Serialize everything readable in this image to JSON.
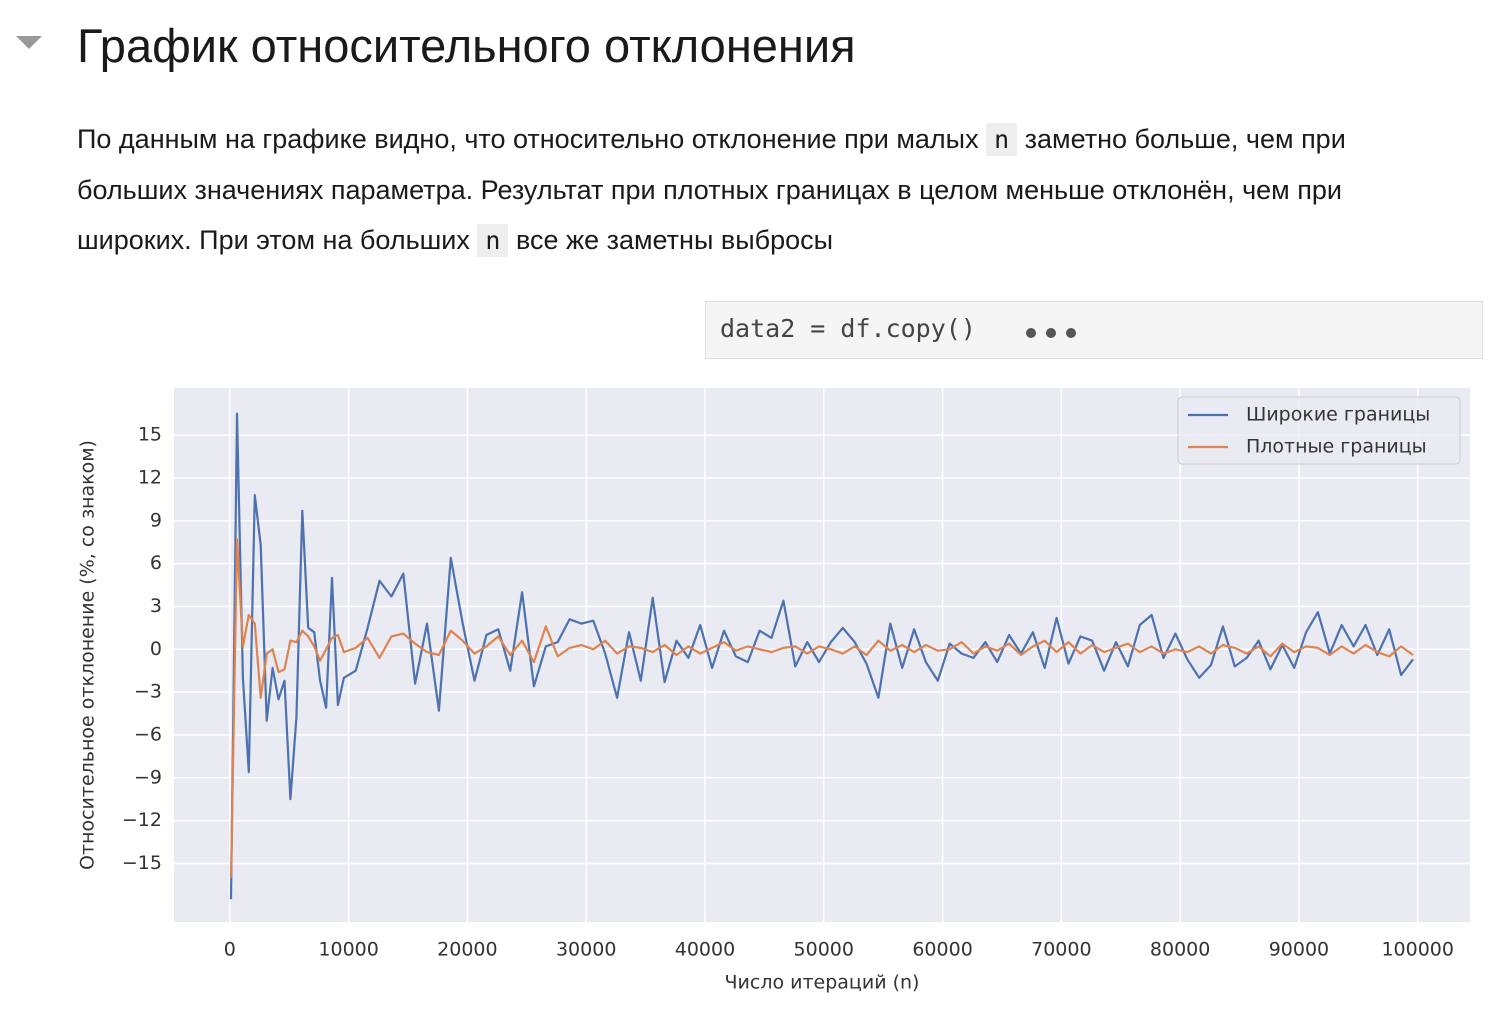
{
  "header": {
    "title": "График относительного отклонения"
  },
  "paragraph": [
    "По данным на графике видно, что относительно отклонение при малых ",
    "n",
    " заметно больше, чем при больших значениях параметра. Результат при плотных границах в целом меньше отклонён, чем при широких. При этом на больших ",
    "n",
    " все же заметны выбросы"
  ],
  "code": "data2 = df.copy()",
  "chart_data": {
    "type": "line",
    "xlabel": "Число итераций (n)",
    "ylabel": "Относительное отклонение (%, со знаком)",
    "x": [
      100,
      600,
      1100,
      1600,
      2100,
      2600,
      3100,
      3600,
      4100,
      4600,
      5100,
      5600,
      6100,
      6600,
      7100,
      7600,
      8100,
      8600,
      9100,
      9600,
      10600,
      11600,
      12600,
      13600,
      14600,
      15600,
      16600,
      17600,
      18600,
      19600,
      20600,
      21600,
      22600,
      23600,
      24600,
      25600,
      26600,
      27600,
      28600,
      29600,
      30600,
      31600,
      32600,
      33600,
      34600,
      35600,
      36600,
      37600,
      38600,
      39600,
      40600,
      41600,
      42600,
      43600,
      44600,
      45600,
      46600,
      47600,
      48600,
      49600,
      50600,
      51600,
      52600,
      53600,
      54600,
      55600,
      56600,
      57600,
      58600,
      59600,
      60600,
      61600,
      62600,
      63600,
      64600,
      65600,
      66600,
      67600,
      68600,
      69600,
      70600,
      71600,
      72600,
      73600,
      74600,
      75600,
      76600,
      77600,
      78600,
      79600,
      80600,
      81600,
      82600,
      83600,
      84600,
      85600,
      86600,
      87600,
      88600,
      89600,
      90600,
      91600,
      92600,
      93600,
      94600,
      95600,
      96600,
      97600,
      98600,
      99600
    ],
    "series": [
      {
        "name": "Широкие границы",
        "color": "#4c72b0",
        "values": [
          -17.5,
          16.5,
          -2,
          -8.6,
          10.8,
          7.3,
          -5,
          -1.3,
          -3.5,
          -2.2,
          -10.5,
          -4.8,
          9.7,
          1.5,
          1.2,
          -2.2,
          -4.1,
          5,
          -3.9,
          -2,
          -1.5,
          1.5,
          4.8,
          3.7,
          5.3,
          -2.4,
          1.8,
          -4.3,
          6.4,
          1.8,
          -2.2,
          1,
          1.4,
          -1.5,
          4,
          -2.6,
          0.2,
          0.5,
          2.1,
          1.8,
          2,
          -0.3,
          -3.4,
          1.2,
          -2.2,
          3.6,
          -2.3,
          0.6,
          -0.6,
          1.7,
          -1.3,
          1.3,
          -0.5,
          -0.9,
          1.3,
          0.8,
          3.4,
          -1.2,
          0.5,
          -0.9,
          0.5,
          1.5,
          0.5,
          -1,
          -3.4,
          1.8,
          -1.3,
          1.4,
          -0.9,
          -2.2,
          0.4,
          -0.3,
          -0.6,
          0.5,
          -0.9,
          1,
          -0.3,
          1.2,
          -1.3,
          2.2,
          -1,
          0.9,
          0.6,
          -1.5,
          0.5,
          -1.2,
          1.7,
          2.4,
          -0.6,
          1.1,
          -0.7,
          -2,
          -1.1,
          1.6,
          -1.2,
          -0.6,
          0.6,
          -1.4,
          0.3,
          -1.3,
          1.2,
          2.6,
          -0.3,
          1.7,
          0.2,
          1.7,
          -0.4,
          1.4,
          -1.8,
          -0.7
        ]
      },
      {
        "name": "Плотные границы",
        "color": "#dd8452",
        "values": [
          -16,
          7.7,
          0.2,
          2.4,
          1.8,
          -3.4,
          -0.3,
          0,
          -1.6,
          -1.4,
          0.6,
          0.5,
          1.3,
          0.9,
          0.2,
          -0.8,
          0,
          0.8,
          1,
          -0.2,
          0.1,
          0.8,
          -0.6,
          0.9,
          1.1,
          0.4,
          -0.2,
          -0.4,
          1.3,
          0.6,
          -0.3,
          0.2,
          0.9,
          -0.4,
          0.6,
          -0.9,
          1.6,
          -0.5,
          0.1,
          0.3,
          0,
          0.6,
          -0.3,
          0.2,
          0.1,
          -0.2,
          0.3,
          -0.4,
          0.2,
          -0.3,
          0.1,
          0.5,
          -0.1,
          0.2,
          0,
          -0.2,
          0.1,
          0.2,
          -0.3,
          0.2,
          0,
          -0.3,
          0.2,
          -0.4,
          0.6,
          -0.1,
          0.3,
          -0.2,
          0.3,
          -0.1,
          0,
          0.5,
          -0.3,
          0.2,
          -0.1,
          0.4,
          -0.4,
          0.2,
          0.6,
          -0.2,
          0.5,
          -0.3,
          0.3,
          -0.2,
          0.1,
          0.4,
          -0.2,
          0.2,
          -0.3,
          0,
          -0.2,
          0.2,
          -0.3,
          0.3,
          0.1,
          -0.3,
          0.2,
          -0.5,
          0.4,
          -0.2,
          0.2,
          0.1,
          -0.4,
          0.2,
          -0.3,
          0.3,
          -0.2,
          -0.5,
          0.2,
          -0.4
        ]
      }
    ],
    "xlim": [
      -4700,
      104400
    ],
    "ylim": [
      -19.1,
      18.3
    ],
    "xticks": [
      0,
      10000,
      20000,
      30000,
      40000,
      50000,
      60000,
      70000,
      80000,
      90000,
      100000
    ],
    "yticks": [
      {
        "value": -15,
        "label": "−15"
      },
      {
        "value": -12,
        "label": "−12"
      },
      {
        "value": -9,
        "label": "−9"
      },
      {
        "value": -6,
        "label": "−6"
      },
      {
        "value": -3,
        "label": "−3"
      },
      0,
      3,
      6,
      9,
      12,
      15
    ],
    "grid": true,
    "legend": "upper right"
  }
}
